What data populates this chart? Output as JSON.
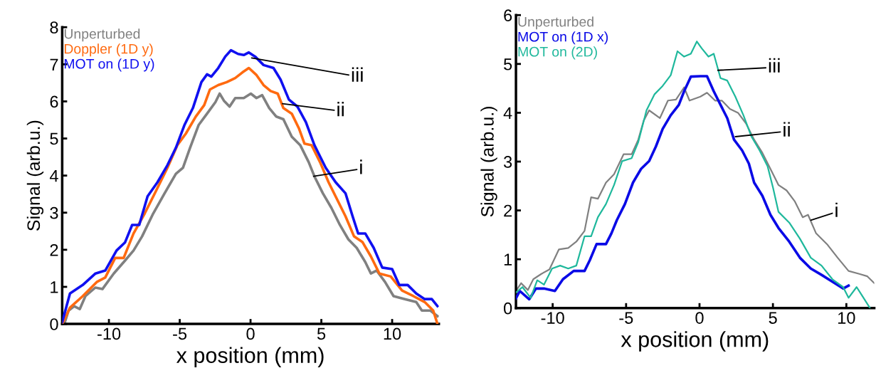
{
  "chart_data": [
    {
      "type": "line",
      "xlabel": "x position (mm)",
      "ylabel": "Signal (arb.u.)",
      "xlim": [
        -13.3,
        13.3
      ],
      "ylim": [
        0,
        8
      ],
      "xticks": [
        -10,
        -5,
        0,
        5,
        10
      ],
      "yticks": [
        0,
        1,
        2,
        3,
        4,
        5,
        6,
        7,
        8
      ],
      "grid": false,
      "legend": "top left",
      "marker": "none",
      "line_style": "solid",
      "annotations": [
        {
          "text": "iii",
          "x": 0.08,
          "y": 7.17
        },
        {
          "text": "ii",
          "x": 2.25,
          "y": 5.94
        },
        {
          "text": "i",
          "x": 4.45,
          "y": 3.98
        }
      ],
      "series": [
        {
          "name": "Unperturbed",
          "color": "#808080",
          "x": [
            -13.15,
            -12.85,
            -12.45,
            -12.06,
            -11.66,
            -10.96,
            -10.46,
            -9.66,
            -8.86,
            -8.26,
            -7.66,
            -6.87,
            -6.07,
            -5.27,
            -4.77,
            -4.27,
            -3.67,
            -3.07,
            -2.48,
            -2.18,
            -1.88,
            -1.48,
            -1.08,
            -0.48,
            0.02,
            0.42,
            0.82,
            1.32,
            1.82,
            2.32,
            2.91,
            3.51,
            4.11,
            4.51,
            5.11,
            5.71,
            6.31,
            6.91,
            7.5,
            8.1,
            8.5,
            8.9,
            9.5,
            10.1,
            10.9,
            11.7,
            12.1,
            12.7,
            13.2
          ],
          "values": [
            0,
            0.36,
            0.48,
            0.4,
            0.75,
            0.98,
            0.94,
            1.36,
            1.71,
            1.98,
            2.36,
            2.98,
            3.52,
            4.05,
            4.21,
            4.75,
            5.36,
            5.67,
            5.98,
            6.21,
            6.02,
            5.86,
            6.09,
            6.09,
            6.21,
            6.09,
            6.17,
            5.82,
            5.59,
            5.52,
            5.05,
            4.82,
            4.36,
            3.98,
            3.52,
            3.13,
            2.67,
            2.28,
            2.05,
            1.67,
            1.36,
            1.44,
            1.13,
            0.75,
            0.67,
            0.59,
            0.36,
            0.36,
            0.21
          ]
        },
        {
          "name": "Doppler (1D y)",
          "color": "#ff6a10",
          "x": [
            -13.3,
            -12.75,
            -11.85,
            -10.86,
            -10.26,
            -9.56,
            -8.96,
            -8.26,
            -7.47,
            -6.67,
            -5.87,
            -5.17,
            -4.57,
            -3.87,
            -3.27,
            -2.87,
            -2.28,
            -1.68,
            -1.08,
            -0.58,
            -0.12,
            0.42,
            0.92,
            1.42,
            1.92,
            2.32,
            2.91,
            3.41,
            3.81,
            4.31,
            4.91,
            5.51,
            6.11,
            6.71,
            7.31,
            7.9,
            8.5,
            9.1,
            9.9,
            10.7,
            11.5,
            12.3,
            12.9,
            13.2
          ],
          "values": [
            0,
            0.44,
            0.75,
            1.13,
            1.25,
            1.78,
            1.78,
            2.44,
            2.98,
            3.59,
            4.21,
            4.82,
            5.13,
            5.59,
            5.9,
            6.32,
            6.44,
            6.52,
            6.63,
            6.78,
            6.9,
            6.71,
            6.44,
            6.28,
            6.21,
            5.82,
            5.67,
            5.28,
            4.86,
            4.82,
            4.36,
            3.82,
            3.36,
            2.9,
            2.36,
            2.21,
            1.82,
            1.36,
            1.28,
            0.9,
            0.75,
            0.59,
            0.36,
            0
          ]
        },
        {
          "name": "MOT on (1D y)",
          "color": "#1010f0",
          "x": [
            -13.3,
            -12.75,
            -11.85,
            -10.95,
            -10.26,
            -9.46,
            -8.86,
            -8.36,
            -7.86,
            -7.27,
            -6.57,
            -5.87,
            -5.27,
            -4.67,
            -4.07,
            -3.47,
            -3.07,
            -2.77,
            -2.28,
            -1.78,
            -1.38,
            -0.88,
            -0.48,
            -0.12,
            0.32,
            0.92,
            1.62,
            2.12,
            2.71,
            3.31,
            3.91,
            4.51,
            5.31,
            6.01,
            6.71,
            7.21,
            7.6,
            8.1,
            8.7,
            9.3,
            10.0,
            10.5,
            11.1,
            11.7,
            12.3,
            12.8,
            13.2
          ],
          "values": [
            0.05,
            0.82,
            1.05,
            1.36,
            1.44,
            1.98,
            2.2,
            2.67,
            2.67,
            3.44,
            3.82,
            4.28,
            4.75,
            5.36,
            5.82,
            6.52,
            6.73,
            6.67,
            6.9,
            7.21,
            7.38,
            7.28,
            7.25,
            7.32,
            7.21,
            6.98,
            6.9,
            6.59,
            6.05,
            5.86,
            5.44,
            4.82,
            4.21,
            3.82,
            3.52,
            2.9,
            2.44,
            2.44,
            2.05,
            1.52,
            1.48,
            1.05,
            1.05,
            0.82,
            0.67,
            0.67,
            0.48
          ]
        }
      ]
    },
    {
      "type": "line",
      "xlabel": "x position (mm)",
      "ylabel": "Signal (arb.u.)",
      "xlim": [
        -12.5,
        11.9
      ],
      "ylim": [
        0,
        6
      ],
      "xticks": [
        -10,
        -5,
        0,
        5,
        10
      ],
      "yticks": [
        0,
        1,
        2,
        3,
        4,
        5,
        6
      ],
      "grid": false,
      "legend": "top left",
      "marker": "none",
      "line_style": "solid",
      "annotations": [
        {
          "text": "iii",
          "x": 1.25,
          "y": 4.87
        },
        {
          "text": "ii",
          "x": 2.44,
          "y": 3.51
        },
        {
          "text": "i",
          "x": 7.58,
          "y": 1.8
        }
      ],
      "series": [
        {
          "name": "Unperturbed",
          "color": "#808080",
          "x": [
            -12.5,
            -12.15,
            -11.69,
            -11.32,
            -10.77,
            -10.22,
            -9.58,
            -8.94,
            -8.39,
            -7.83,
            -7.38,
            -6.92,
            -6.37,
            -5.82,
            -5.17,
            -4.62,
            -4.17,
            -3.8,
            -3.43,
            -2.7,
            -2.15,
            -1.6,
            -1.05,
            -0.68,
            0.06,
            0.51,
            1.06,
            1.52,
            2.07,
            2.62,
            3.17,
            3.72,
            4.28,
            4.83,
            5.38,
            5.93,
            6.48,
            7.03,
            7.39,
            7.94,
            8.68,
            9.41,
            10.15,
            10.88,
            11.43,
            11.9
          ],
          "values": [
            0.35,
            0.51,
            0.37,
            0.59,
            0.7,
            0.79,
            1.2,
            1.23,
            1.36,
            1.58,
            2.27,
            2.24,
            2.57,
            2.74,
            3.15,
            3.15,
            3.45,
            3.84,
            4.05,
            3.89,
            4.25,
            4.27,
            4.52,
            4.25,
            4.33,
            4.41,
            4.25,
            4.25,
            4.08,
            4.0,
            3.78,
            3.45,
            3.18,
            2.85,
            2.52,
            2.41,
            2.19,
            1.86,
            1.91,
            1.53,
            1.31,
            1.03,
            0.76,
            0.7,
            0.65,
            0.51
          ]
        },
        {
          "name": "MOT on (1D x)",
          "color": "#0a0ae6",
          "x": [
            -12.5,
            -12.24,
            -11.6,
            -11.14,
            -10.59,
            -9.85,
            -9.3,
            -8.57,
            -7.83,
            -7.47,
            -7.01,
            -6.37,
            -6.0,
            -5.63,
            -5.08,
            -4.53,
            -3.98,
            -3.43,
            -2.97,
            -2.51,
            -1.96,
            -1.41,
            -1.05,
            -0.59,
            0.06,
            0.51,
            0.97,
            1.52,
            1.89,
            2.35,
            2.9,
            3.36,
            3.72,
            4.28,
            4.83,
            5.38,
            6.11,
            6.84,
            7.58,
            8.31,
            9.05,
            9.78,
            10.15
          ],
          "values": [
            0.2,
            0.35,
            0.18,
            0.4,
            0.4,
            0.35,
            0.59,
            0.76,
            0.76,
            0.98,
            1.31,
            1.31,
            1.53,
            1.8,
            2.13,
            2.57,
            2.85,
            3.01,
            3.31,
            3.67,
            3.95,
            4.16,
            4.44,
            4.74,
            4.75,
            4.75,
            4.44,
            4.11,
            3.89,
            3.45,
            3.23,
            2.96,
            2.57,
            2.3,
            1.91,
            1.64,
            1.36,
            1.03,
            0.81,
            0.68,
            0.54,
            0.4,
            0.46
          ]
        },
        {
          "name": "MOT on (2D)",
          "color": "#1fb89c",
          "x": [
            -12.5,
            -12.06,
            -11.5,
            -11.05,
            -10.59,
            -10.04,
            -9.49,
            -8.94,
            -8.39,
            -7.83,
            -7.38,
            -6.92,
            -6.37,
            -5.82,
            -5.27,
            -4.62,
            -4.17,
            -3.61,
            -3.06,
            -2.51,
            -1.96,
            -1.5,
            -1.05,
            -0.59,
            -0.18,
            0.15,
            0.61,
            0.97,
            1.43,
            1.89,
            2.44,
            2.99,
            3.54,
            4.09,
            4.64,
            5.01,
            5.38,
            6.11,
            6.84,
            7.58,
            8.31,
            9.05,
            9.78,
            10.15,
            10.7,
            11.06,
            11.61
          ],
          "values": [
            0.32,
            0.43,
            0.21,
            0.57,
            0.48,
            0.81,
            0.87,
            0.81,
            0.87,
            1.47,
            1.47,
            1.86,
            2.13,
            2.52,
            3.01,
            3.07,
            3.4,
            4.05,
            4.38,
            4.55,
            4.77,
            5.26,
            5.15,
            5.21,
            5.46,
            5.32,
            5.15,
            5.21,
            4.71,
            4.66,
            4.33,
            3.95,
            3.51,
            3.23,
            2.9,
            2.46,
            1.97,
            1.75,
            1.42,
            1.03,
            0.87,
            0.59,
            0.43,
            0.21,
            0.43,
            0.26,
            0
          ]
        }
      ]
    }
  ]
}
